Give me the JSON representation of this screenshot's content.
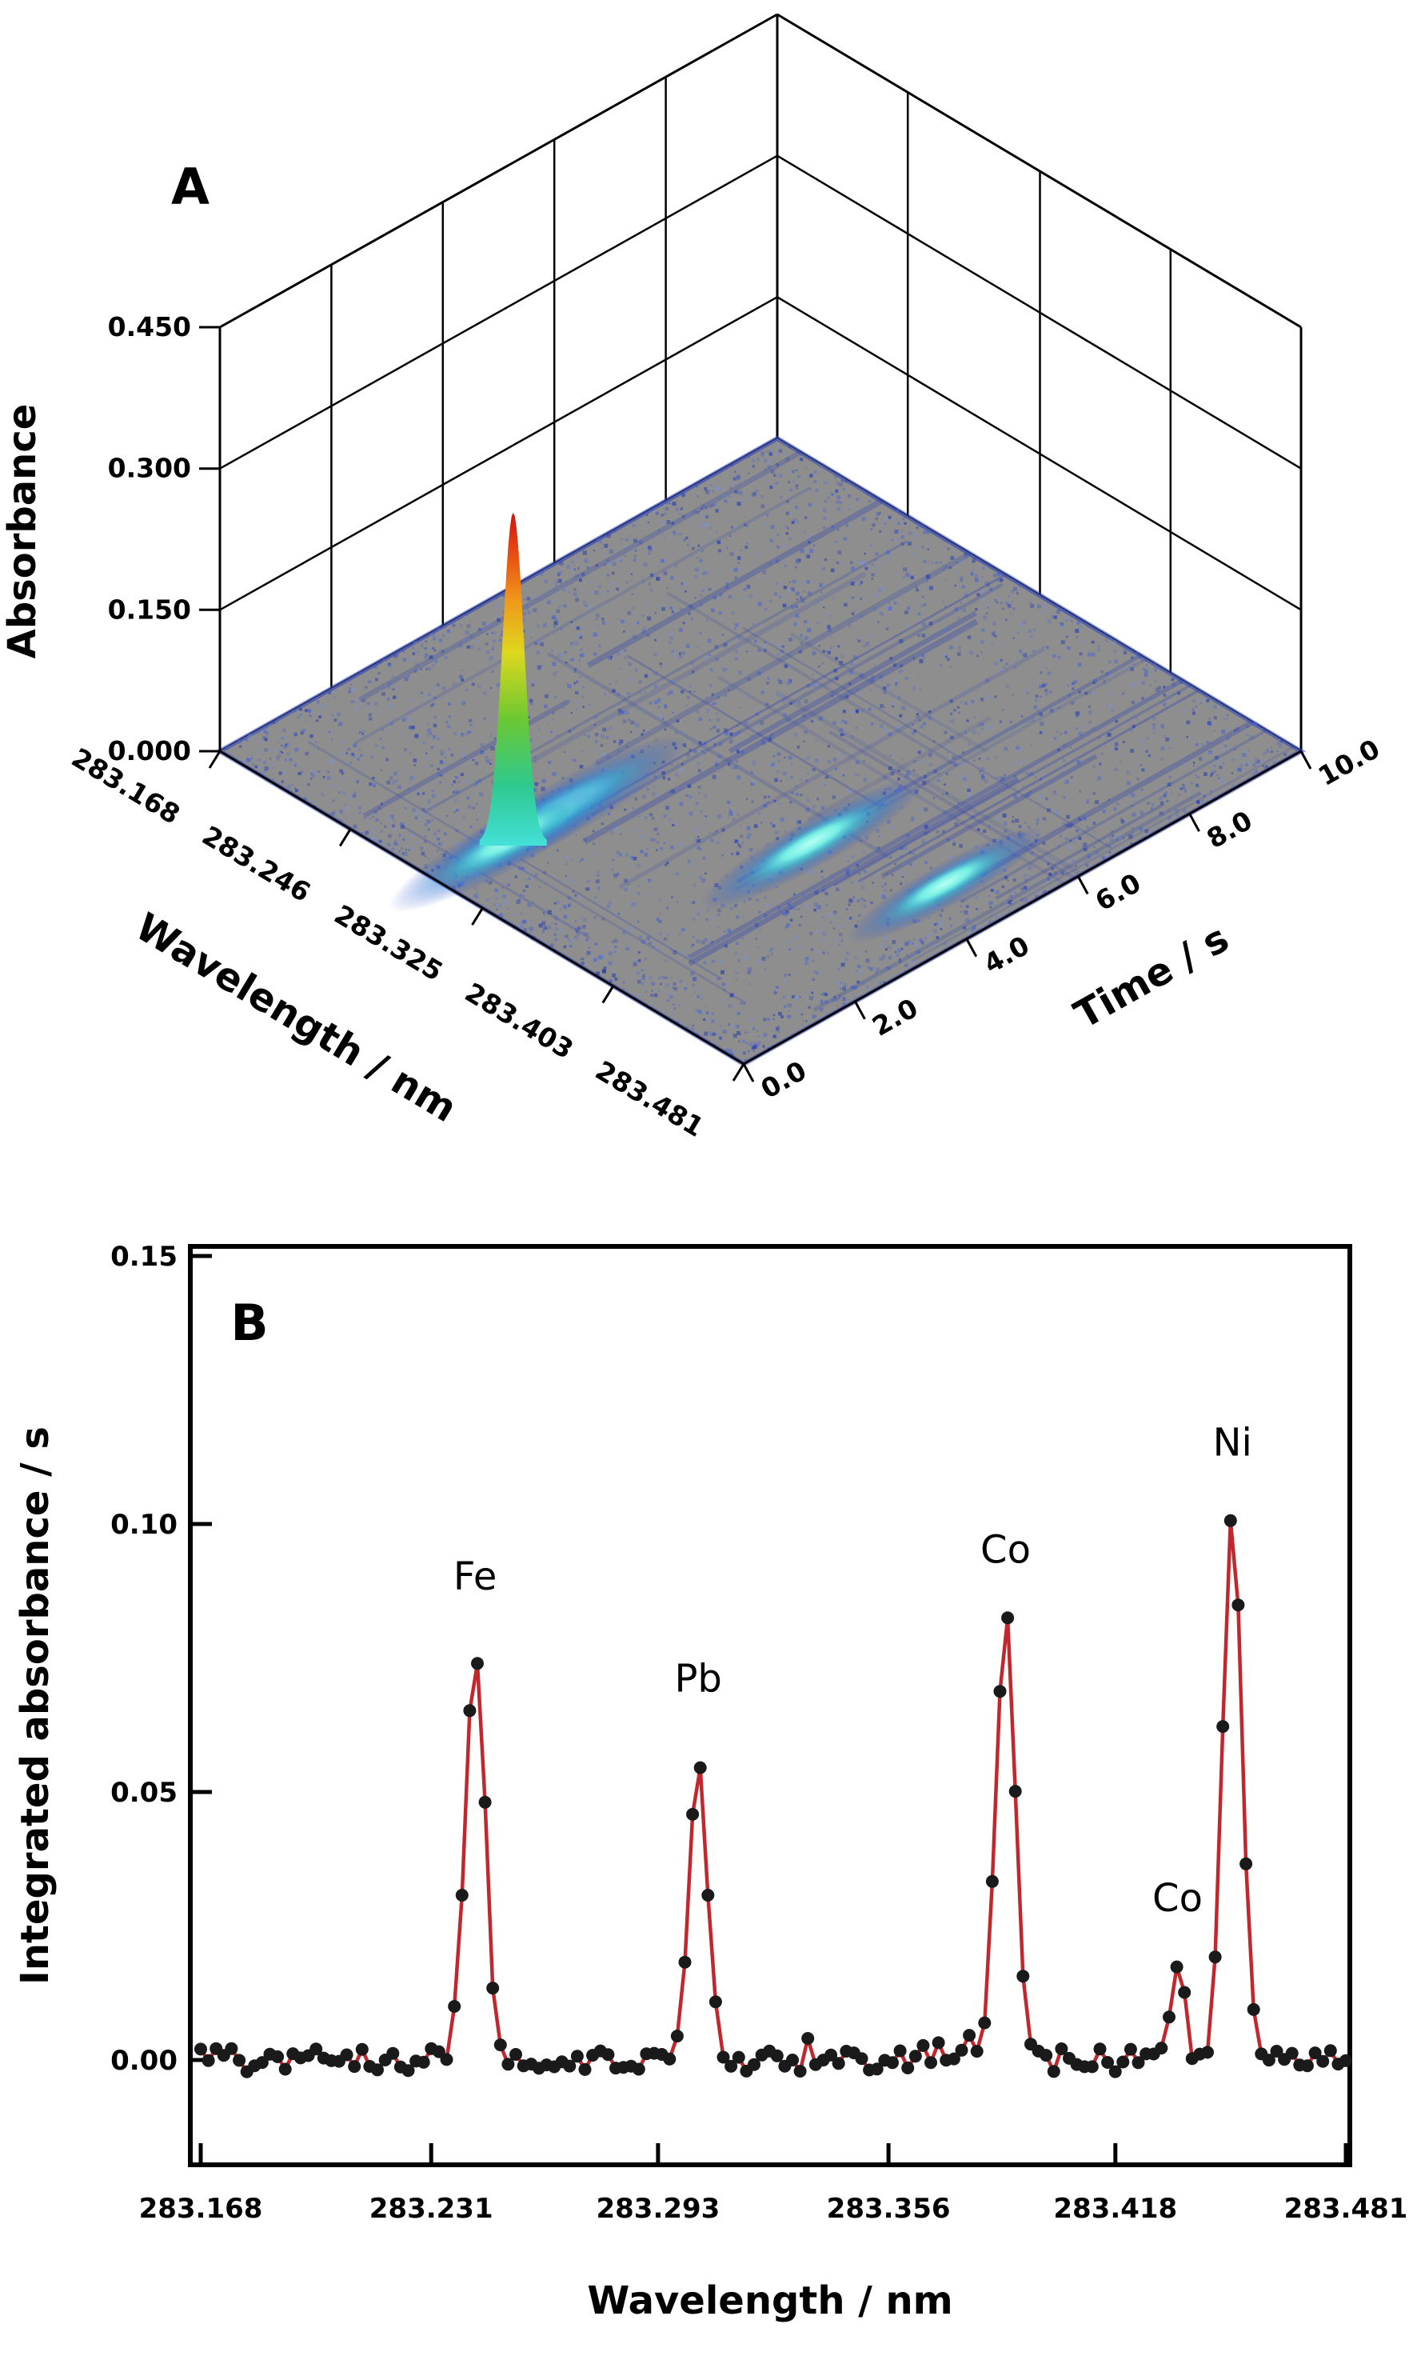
{
  "page": {
    "background": "#ffffff"
  },
  "chart_data": [
    {
      "id": "panel-a",
      "panel_label": "A",
      "type": "3d-surface",
      "z_axis": {
        "title": "Absorbance",
        "ticks": [
          0,
          0.15,
          0.3,
          0.45
        ],
        "tick_labels": [
          "0.000",
          "0.150",
          "0.300",
          "0.450"
        ],
        "range": [
          0,
          0.45
        ]
      },
      "x_axis": {
        "title": "Wavelength / nm",
        "ticks": [
          283.168,
          283.246,
          283.325,
          283.403,
          283.481
        ],
        "tick_labels": [
          "283.168",
          "283.246",
          "283.325",
          "283.403",
          "283.481"
        ],
        "range": [
          283.168,
          283.481
        ]
      },
      "y_axis": {
        "title": "Time / s",
        "ticks": [
          0,
          2,
          4,
          6,
          8,
          10
        ],
        "tick_labels": [
          "0.0",
          "2.0",
          "4.0",
          "6.0",
          "8.0",
          "10.0"
        ],
        "range": [
          0,
          10
        ]
      },
      "surface": {
        "base_color": "#8e8e8e",
        "noise_colors": [
          "#4a63d0",
          "#2b3fb0",
          "#7d90e0"
        ],
        "edge_color": "#2d46be",
        "ridge_colors": [
          "#79f2e6",
          "#3fd0cc",
          "#2f7fd4",
          "#2b46c8"
        ],
        "main_peak": {
          "wavelength": 283.3,
          "time_s": 1.3,
          "absorbance": 0.35,
          "gradient": [
            {
              "o": 0,
              "c": "#45e0d8"
            },
            {
              "o": 0.18,
              "c": "#2ec98f"
            },
            {
              "o": 0.38,
              "c": "#6cc832"
            },
            {
              "o": 0.58,
              "c": "#ddd81e"
            },
            {
              "o": 0.74,
              "c": "#f0961b"
            },
            {
              "o": 0.88,
              "c": "#e64b12"
            },
            {
              "o": 1,
              "c": "#cf1110"
            }
          ]
        },
        "ridges": [
          {
            "wavelength": 283.3,
            "time_center_s": 2.2,
            "time_span_s": 4.5,
            "absorbance": 0.04
          },
          {
            "wavelength": 283.39,
            "time_center_s": 4.0,
            "time_span_s": 4.0,
            "absorbance": 0.03
          },
          {
            "wavelength": 283.45,
            "time_center_s": 4.6,
            "time_span_s": 3.5,
            "absorbance": 0.025
          }
        ]
      }
    },
    {
      "id": "panel-b",
      "panel_label": "B",
      "type": "line",
      "xlabel": "Wavelength / nm",
      "ylabel": "Integrated absorbance / s",
      "xlim": [
        283.168,
        283.481
      ],
      "ylim": [
        -0.0196,
        0.1535
      ],
      "x_ticks": [
        283.168,
        283.231,
        283.293,
        283.356,
        283.418,
        283.481
      ],
      "x_tick_labels": [
        "283.168",
        "283.231",
        "283.293",
        "283.356",
        "283.418",
        "283.481"
      ],
      "y_ticks": [
        0,
        0.05,
        0.1,
        0.15
      ],
      "y_tick_labels": [
        "0.00",
        "0.05",
        "0.10",
        "0.15"
      ],
      "line_color": "#c1272d",
      "marker_color": "#1a1a1a",
      "baseline": 0.0,
      "noise_amplitude": 0.0022,
      "n_points": 150,
      "peaks": [
        {
          "element": "Fe",
          "wavelength": 283.243,
          "integrated_absorbance": 0.077,
          "sigma": 0.0038
        },
        {
          "element": "Pb",
          "wavelength": 283.304,
          "integrated_absorbance": 0.058,
          "sigma": 0.0033
        },
        {
          "element": "Co",
          "wavelength": 283.388,
          "integrated_absorbance": 0.082,
          "sigma": 0.0038
        },
        {
          "element": "Co",
          "wavelength": 283.435,
          "integrated_absorbance": 0.017,
          "sigma": 0.0028
        },
        {
          "element": "Ni",
          "wavelength": 283.45,
          "integrated_absorbance": 0.102,
          "sigma": 0.0036
        }
      ]
    }
  ]
}
